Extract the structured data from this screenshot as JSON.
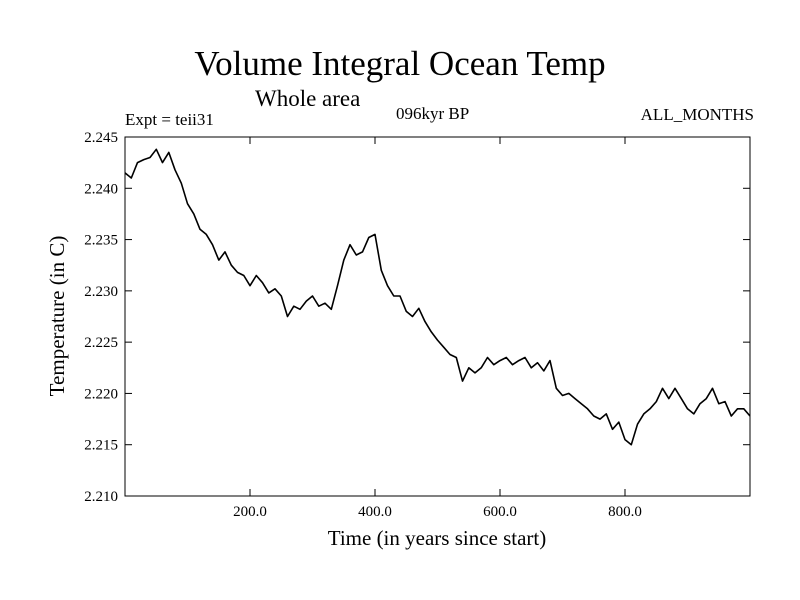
{
  "header": {
    "title": "Volume Integral Ocean Temp",
    "subtitle": "Whole area",
    "left_note": "Expt = teii31",
    "center_note": "096kyr BP",
    "right_note": "ALL_MONTHS"
  },
  "chart_data": {
    "type": "line",
    "xlabel": "Time (in years since start)",
    "ylabel": "Temperature (in C)",
    "xlim": [
      0,
      1000
    ],
    "ylim": [
      2.21,
      2.245
    ],
    "x_ticks": [
      200,
      400,
      600,
      800
    ],
    "x_tick_labels": [
      "200.0",
      "400.0",
      "600.0",
      "800.0"
    ],
    "y_ticks": [
      2.21,
      2.215,
      2.22,
      2.225,
      2.23,
      2.235,
      2.24,
      2.245
    ],
    "y_tick_labels": [
      "2.210",
      "2.215",
      "2.220",
      "2.225",
      "2.230",
      "2.235",
      "2.240",
      "2.245"
    ],
    "grid": false,
    "series": [
      {
        "color": "#000000",
        "x": [
          0,
          10,
          20,
          30,
          40,
          50,
          60,
          70,
          80,
          90,
          100,
          110,
          120,
          130,
          140,
          150,
          160,
          170,
          180,
          190,
          200,
          210,
          220,
          230,
          240,
          250,
          260,
          270,
          280,
          290,
          300,
          310,
          320,
          330,
          340,
          350,
          360,
          370,
          380,
          390,
          400,
          410,
          420,
          430,
          440,
          450,
          460,
          470,
          480,
          490,
          500,
          510,
          520,
          530,
          540,
          550,
          560,
          570,
          580,
          590,
          600,
          610,
          620,
          630,
          640,
          650,
          660,
          670,
          680,
          690,
          700,
          710,
          720,
          730,
          740,
          750,
          760,
          770,
          780,
          790,
          800,
          810,
          820,
          830,
          840,
          850,
          860,
          870,
          880,
          890,
          900,
          910,
          920,
          930,
          940,
          950,
          960,
          970,
          980,
          990,
          1000
        ],
        "y": [
          2.2415,
          2.241,
          2.2425,
          2.2428,
          2.243,
          2.2438,
          2.2425,
          2.2435,
          2.2418,
          2.2405,
          2.2385,
          2.2375,
          2.236,
          2.2355,
          2.2345,
          2.233,
          2.2338,
          2.2325,
          2.2318,
          2.2315,
          2.2305,
          2.2315,
          2.2308,
          2.2298,
          2.2302,
          2.2295,
          2.2275,
          2.2285,
          2.2282,
          2.229,
          2.2295,
          2.2285,
          2.2288,
          2.2282,
          2.2305,
          2.233,
          2.2345,
          2.2335,
          2.2338,
          2.2352,
          2.2355,
          2.232,
          2.2305,
          2.2295,
          2.2295,
          2.228,
          2.2275,
          2.2283,
          2.227,
          2.226,
          2.2252,
          2.2245,
          2.2238,
          2.2235,
          2.2212,
          2.2225,
          2.222,
          2.2225,
          2.2235,
          2.2228,
          2.2232,
          2.2235,
          2.2228,
          2.2232,
          2.2235,
          2.2225,
          2.223,
          2.2222,
          2.2232,
          2.2205,
          2.2198,
          2.22,
          2.2195,
          2.219,
          2.2185,
          2.2178,
          2.2175,
          2.218,
          2.2165,
          2.2172,
          2.2155,
          2.215,
          2.217,
          2.218,
          2.2185,
          2.2192,
          2.2205,
          2.2195,
          2.2205,
          2.2195,
          2.2185,
          2.218,
          2.219,
          2.2195,
          2.2205,
          2.219,
          2.2192,
          2.2178,
          2.2185,
          2.2185,
          2.2178
        ]
      }
    ]
  }
}
